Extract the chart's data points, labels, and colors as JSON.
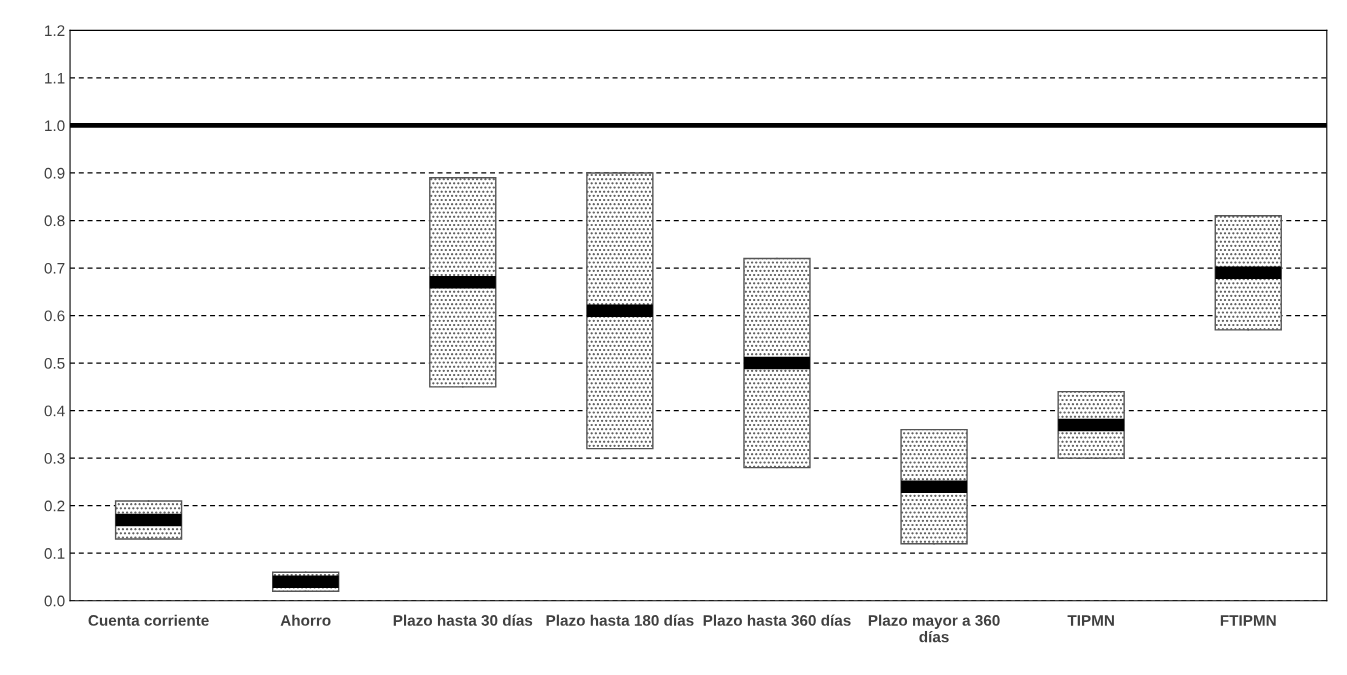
{
  "chart_data": {
    "type": "box",
    "categories": [
      "Cuenta corriente",
      "Ahorro",
      "Plazo hasta 30 días",
      "Plazo hasta 180 días",
      "Plazo hasta 360 días",
      "Plazo mayor a 360 días",
      "TIPMN",
      "FTIPMN"
    ],
    "boxes": [
      {
        "low": 0.13,
        "q1": 0.13,
        "median": 0.17,
        "q3": 0.21,
        "high": 0.21
      },
      {
        "low": 0.02,
        "q1": 0.02,
        "median": 0.04,
        "q3": 0.06,
        "high": 0.06
      },
      {
        "low": 0.45,
        "q1": 0.45,
        "median": 0.67,
        "q3": 0.89,
        "high": 0.89
      },
      {
        "low": 0.32,
        "q1": 0.32,
        "median": 0.61,
        "q3": 0.9,
        "high": 0.9
      },
      {
        "low": 0.28,
        "q1": 0.28,
        "median": 0.5,
        "q3": 0.72,
        "high": 0.72
      },
      {
        "low": 0.12,
        "q1": 0.12,
        "median": 0.24,
        "q3": 0.36,
        "high": 0.36
      },
      {
        "low": 0.3,
        "q1": 0.3,
        "median": 0.37,
        "q3": 0.44,
        "high": 0.44
      },
      {
        "low": 0.57,
        "q1": 0.57,
        "median": 0.69,
        "q3": 0.81,
        "high": 0.81
      }
    ],
    "color": "#555555",
    "ylim": [
      0.0,
      1.2
    ],
    "yticks": [
      {
        "value": 0,
        "label": "0.0"
      },
      0.1,
      0.2,
      0.3,
      0.4,
      0.5,
      0.6,
      0.7,
      0.8,
      0.9,
      {
        "value": 1,
        "label": "1.0"
      },
      1.1,
      1.2
    ],
    "grid": "y",
    "ref_lines": [
      {
        "axis": "y",
        "value": 1.0,
        "color": "#000000",
        "line_style": "solid"
      }
    ]
  }
}
